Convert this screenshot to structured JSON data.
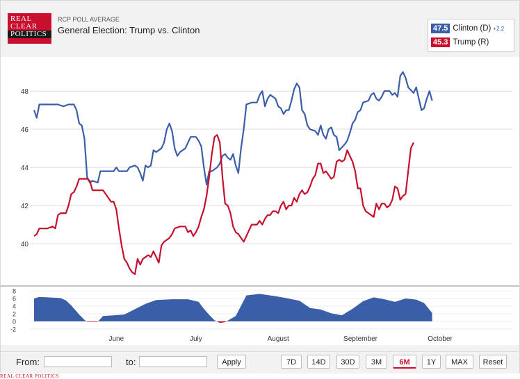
{
  "logo": {
    "line1": "REAL",
    "line2": "CLEAR",
    "line3": "POLITICS"
  },
  "header": {
    "kicker": "RCP POLL AVERAGE",
    "title": "General Election: Trump vs. Clinton"
  },
  "legend": [
    {
      "value": "47.5",
      "name": "Clinton (D)",
      "spread": "+2.2",
      "color": "#3a5fa8"
    },
    {
      "value": "45.3",
      "name": "Trump (R)",
      "spread": "",
      "color": "#c8102e"
    }
  ],
  "colors": {
    "clinton": "#3a5fa8",
    "trump": "#c8102e",
    "grid": "#dddddd"
  },
  "chart_data": {
    "type": "line",
    "title": "General Election: Trump vs. Clinton",
    "xlabel": "",
    "ylabel": "",
    "ylim": [
      38,
      49.5
    ],
    "yticks": [
      40,
      42,
      44,
      46,
      48
    ],
    "x_tick_labels": [
      {
        "label": "June",
        "day": 31
      },
      {
        "label": "July",
        "day": 61
      },
      {
        "label": "August",
        "day": 92
      },
      {
        "label": "September",
        "day": 123
      },
      {
        "label": "October",
        "day": 153
      }
    ],
    "day_range": [
      0,
      175
    ],
    "series": [
      {
        "name": "Clinton (D)",
        "color": "#3a5fa8",
        "points": [
          [
            0,
            47.0
          ],
          [
            1,
            46.6
          ],
          [
            2,
            47.3
          ],
          [
            5,
            47.3
          ],
          [
            9,
            47.3
          ],
          [
            11,
            47.2
          ],
          [
            13,
            47.3
          ],
          [
            15,
            47.3
          ],
          [
            16,
            47.0
          ],
          [
            17,
            46.3
          ],
          [
            18,
            46.2
          ],
          [
            19,
            45.5
          ],
          [
            20,
            43.5
          ],
          [
            21,
            43.2
          ],
          [
            22,
            43.3
          ],
          [
            24,
            43.2
          ],
          [
            25,
            43.8
          ],
          [
            28,
            43.8
          ],
          [
            30,
            43.8
          ],
          [
            31,
            44.0
          ],
          [
            32,
            43.8
          ],
          [
            35,
            43.8
          ],
          [
            36,
            44.0
          ],
          [
            38,
            44.1
          ],
          [
            39,
            44.0
          ],
          [
            40,
            43.7
          ],
          [
            41,
            43.3
          ],
          [
            42,
            44.1
          ],
          [
            43,
            44.0
          ],
          [
            44,
            44.1
          ],
          [
            45,
            44.9
          ],
          [
            46,
            44.8
          ],
          [
            48,
            45.0
          ],
          [
            49,
            45.3
          ],
          [
            50,
            46.0
          ],
          [
            51,
            46.3
          ],
          [
            52,
            45.9
          ],
          [
            53,
            45.0
          ],
          [
            54,
            44.6
          ],
          [
            55,
            44.8
          ],
          [
            57,
            45.0
          ],
          [
            59,
            45.6
          ],
          [
            61,
            45.6
          ],
          [
            62,
            45.4
          ],
          [
            63,
            45.1
          ],
          [
            64,
            44.0
          ],
          [
            65,
            43.1
          ],
          [
            66,
            43.8
          ],
          [
            67,
            43.8
          ],
          [
            69,
            44.0
          ],
          [
            70,
            44.2
          ],
          [
            71,
            44.6
          ],
          [
            72,
            44.7
          ],
          [
            73,
            44.5
          ],
          [
            74,
            44.4
          ],
          [
            75,
            44.7
          ],
          [
            76,
            44.1
          ],
          [
            77,
            43.7
          ],
          [
            78,
            45.0
          ],
          [
            79,
            46.0
          ],
          [
            80,
            47.3
          ],
          [
            82,
            47.4
          ],
          [
            83,
            47.4
          ],
          [
            84,
            47.4
          ],
          [
            85,
            47.8
          ],
          [
            86,
            48.0
          ],
          [
            87,
            47.2
          ],
          [
            88,
            47.6
          ],
          [
            89,
            47.8
          ],
          [
            91,
            47.6
          ],
          [
            92,
            47.2
          ],
          [
            93,
            47.1
          ],
          [
            94,
            46.8
          ],
          [
            95,
            47.0
          ],
          [
            96,
            47.0
          ],
          [
            97,
            47.5
          ],
          [
            98,
            48.1
          ],
          [
            99,
            48.4
          ],
          [
            100,
            48.2
          ],
          [
            101,
            47.0
          ],
          [
            102,
            46.8
          ],
          [
            103,
            46.2
          ],
          [
            104,
            46.0
          ],
          [
            106,
            45.9
          ],
          [
            107,
            45.7
          ],
          [
            108,
            46.2
          ],
          [
            109,
            45.7
          ],
          [
            110,
            45.5
          ],
          [
            111,
            46.0
          ],
          [
            112,
            46.1
          ],
          [
            113,
            45.7
          ],
          [
            114,
            45.6
          ],
          [
            115,
            44.9
          ],
          [
            117,
            45.2
          ],
          [
            118,
            45.4
          ],
          [
            119,
            45.8
          ],
          [
            120,
            46.3
          ],
          [
            121,
            46.5
          ],
          [
            122,
            46.9
          ],
          [
            123,
            47.0
          ],
          [
            124,
            47.4
          ],
          [
            126,
            47.5
          ],
          [
            127,
            47.8
          ],
          [
            128,
            47.9
          ],
          [
            129,
            47.6
          ],
          [
            130,
            47.5
          ],
          [
            131,
            47.7
          ],
          [
            132,
            48.0
          ],
          [
            134,
            48.0
          ],
          [
            135,
            47.8
          ],
          [
            136,
            47.9
          ],
          [
            137,
            47.7
          ],
          [
            138,
            48.8
          ],
          [
            139,
            49.0
          ],
          [
            140,
            48.7
          ],
          [
            141,
            48.2
          ],
          [
            143,
            47.9
          ],
          [
            144,
            48.2
          ],
          [
            145,
            47.6
          ],
          [
            146,
            47.0
          ],
          [
            147,
            47.1
          ],
          [
            148,
            47.6
          ],
          [
            149,
            48.0
          ],
          [
            150,
            47.5
          ]
        ]
      },
      {
        "name": "Trump (R)",
        "color": "#c8102e",
        "points": [
          [
            0,
            40.4
          ],
          [
            1,
            40.5
          ],
          [
            2,
            40.8
          ],
          [
            5,
            40.8
          ],
          [
            7,
            40.9
          ],
          [
            8,
            40.8
          ],
          [
            9,
            41.5
          ],
          [
            10,
            41.6
          ],
          [
            12,
            41.6
          ],
          [
            13,
            42.0
          ],
          [
            14,
            42.6
          ],
          [
            15,
            42.7
          ],
          [
            16,
            43.0
          ],
          [
            17,
            43.4
          ],
          [
            20,
            43.4
          ],
          [
            21,
            43.3
          ],
          [
            22,
            42.8
          ],
          [
            24,
            42.8
          ],
          [
            26,
            42.8
          ],
          [
            27,
            42.6
          ],
          [
            29,
            42.2
          ],
          [
            30,
            42.2
          ],
          [
            31,
            41.8
          ],
          [
            32,
            40.8
          ],
          [
            33,
            39.9
          ],
          [
            34,
            39.2
          ],
          [
            35,
            39.0
          ],
          [
            36,
            38.7
          ],
          [
            37,
            38.5
          ],
          [
            38,
            38.4
          ],
          [
            39,
            39.2
          ],
          [
            40,
            38.9
          ],
          [
            41,
            39.2
          ],
          [
            42,
            39.3
          ],
          [
            43,
            39.4
          ],
          [
            44,
            39.3
          ],
          [
            45,
            39.6
          ],
          [
            46,
            39.3
          ],
          [
            47,
            39.0
          ],
          [
            48,
            39.9
          ],
          [
            49,
            40.1
          ],
          [
            50,
            40.2
          ],
          [
            51,
            40.3
          ],
          [
            52,
            40.5
          ],
          [
            53,
            40.8
          ],
          [
            55,
            40.9
          ],
          [
            57,
            40.9
          ],
          [
            58,
            40.6
          ],
          [
            59,
            40.7
          ],
          [
            60,
            40.4
          ],
          [
            61,
            40.6
          ],
          [
            62,
            40.9
          ],
          [
            63,
            41.4
          ],
          [
            64,
            41.8
          ],
          [
            65,
            42.5
          ],
          [
            66,
            43.5
          ],
          [
            67,
            44.7
          ],
          [
            68,
            45.6
          ],
          [
            69,
            45.7
          ],
          [
            70,
            45.3
          ],
          [
            71,
            43.5
          ],
          [
            72,
            42.1
          ],
          [
            73,
            42.0
          ],
          [
            74,
            41.6
          ],
          [
            75,
            40.9
          ],
          [
            76,
            40.6
          ],
          [
            77,
            40.5
          ],
          [
            78,
            40.3
          ],
          [
            79,
            40.1
          ],
          [
            80,
            40.4
          ],
          [
            81,
            40.7
          ],
          [
            82,
            41.0
          ],
          [
            84,
            41.0
          ],
          [
            85,
            41.2
          ],
          [
            86,
            41.0
          ],
          [
            87,
            41.3
          ],
          [
            88,
            41.5
          ],
          [
            89,
            41.5
          ],
          [
            90,
            41.7
          ],
          [
            91,
            41.7
          ],
          [
            92,
            41.6
          ],
          [
            93,
            42.0
          ],
          [
            94,
            42.2
          ],
          [
            95,
            41.8
          ],
          [
            96,
            42.0
          ],
          [
            97,
            42.0
          ],
          [
            98,
            42.4
          ],
          [
            99,
            42.2
          ],
          [
            100,
            42.6
          ],
          [
            101,
            42.8
          ],
          [
            102,
            42.6
          ],
          [
            103,
            42.7
          ],
          [
            104,
            43.0
          ],
          [
            105,
            43.4
          ],
          [
            106,
            43.6
          ],
          [
            107,
            44.2
          ],
          [
            108,
            44.2
          ],
          [
            109,
            43.7
          ],
          [
            110,
            43.8
          ],
          [
            111,
            43.6
          ],
          [
            112,
            43.4
          ],
          [
            113,
            43.5
          ],
          [
            114,
            44.3
          ],
          [
            115,
            44.4
          ],
          [
            116,
            44.3
          ],
          [
            117,
            44.4
          ],
          [
            118,
            44.9
          ],
          [
            119,
            44.6
          ],
          [
            120,
            44.3
          ],
          [
            121,
            43.8
          ],
          [
            122,
            42.9
          ],
          [
            123,
            42.9
          ],
          [
            124,
            42.0
          ],
          [
            125,
            41.7
          ],
          [
            126,
            41.6
          ],
          [
            127,
            41.5
          ],
          [
            128,
            41.4
          ],
          [
            129,
            42.1
          ],
          [
            130,
            41.8
          ],
          [
            131,
            42.1
          ],
          [
            132,
            42.1
          ],
          [
            133,
            41.9
          ],
          [
            134,
            42.0
          ],
          [
            135,
            42.3
          ],
          [
            136,
            43.0
          ],
          [
            137,
            42.9
          ],
          [
            138,
            42.3
          ],
          [
            139,
            42.5
          ],
          [
            140,
            42.6
          ],
          [
            141,
            43.8
          ],
          [
            142,
            45.0
          ],
          [
            143,
            45.3
          ]
        ]
      }
    ],
    "spread": {
      "ylim": [
        -2,
        8
      ],
      "yticks": [
        -2,
        0,
        2,
        4,
        6,
        8
      ],
      "points": [
        [
          0,
          6.0
        ],
        [
          2,
          6.4
        ],
        [
          10,
          6.1
        ],
        [
          12,
          5.5
        ],
        [
          14,
          4.2
        ],
        [
          17,
          1.8
        ],
        [
          19,
          0.4
        ],
        [
          20,
          -0.1
        ],
        [
          24,
          -0.1
        ],
        [
          26,
          1.4
        ],
        [
          30,
          1.6
        ],
        [
          34,
          1.8
        ],
        [
          38,
          3.2
        ],
        [
          42,
          4.6
        ],
        [
          46,
          5.6
        ],
        [
          52,
          5.8
        ],
        [
          58,
          5.8
        ],
        [
          62,
          5.1
        ],
        [
          64,
          3.3
        ],
        [
          66,
          1.7
        ],
        [
          68,
          0.3
        ],
        [
          70,
          -0.4
        ],
        [
          72,
          -0.2
        ],
        [
          76,
          1.4
        ],
        [
          80,
          6.8
        ],
        [
          85,
          7.2
        ],
        [
          90,
          6.7
        ],
        [
          95,
          6.1
        ],
        [
          100,
          5.4
        ],
        [
          104,
          3.5
        ],
        [
          108,
          3.1
        ],
        [
          112,
          2.1
        ],
        [
          116,
          1.6
        ],
        [
          120,
          3.3
        ],
        [
          124,
          5.3
        ],
        [
          128,
          6.3
        ],
        [
          132,
          5.8
        ],
        [
          136,
          5.1
        ],
        [
          140,
          6.0
        ],
        [
          144,
          5.7
        ],
        [
          147,
          4.8
        ],
        [
          150,
          2.2
        ]
      ]
    }
  },
  "footer": {
    "from_label": "From:",
    "to_label": "to:",
    "from_value": "",
    "to_value": "",
    "apply_label": "Apply",
    "ranges": [
      "7D",
      "14D",
      "30D",
      "3M",
      "6M",
      "1Y",
      "MAX",
      "Reset"
    ],
    "active_range": "6M"
  },
  "credit": "REAL CLEAR POLITICS"
}
